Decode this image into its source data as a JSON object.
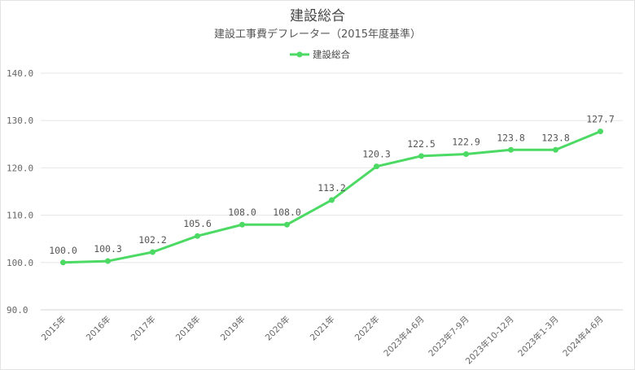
{
  "chart_data": {
    "type": "line",
    "title": "建設総合",
    "subtitle": "建設工事費デフレーター（2015年度基準）",
    "categories": [
      "2015年",
      "2016年",
      "2017年",
      "2018年",
      "2019年",
      "2020年",
      "2021年",
      "2022年",
      "2023年4-6月",
      "2023年7-9月",
      "2023年10-12月",
      "2023年1-3月",
      "2024年4-6月"
    ],
    "series": [
      {
        "name": "建設総合",
        "color": "#4cd964",
        "values": [
          100.0,
          100.3,
          102.2,
          105.6,
          108.0,
          108.0,
          113.2,
          120.3,
          122.5,
          122.9,
          123.8,
          123.8,
          127.7
        ]
      }
    ],
    "data_labels": [
      "100.0",
      "100.3",
      "102.2",
      "105.6",
      "108.0",
      "108.0",
      "113.2",
      "120.3",
      "122.5",
      "122.9",
      "123.8",
      "123.8",
      "127.7"
    ],
    "ylim": [
      90,
      140
    ],
    "yticks": [
      90,
      100,
      110,
      120,
      130,
      140
    ],
    "ytick_labels": [
      "90.0",
      "100.0",
      "110.0",
      "120.0",
      "130.0",
      "140.0"
    ],
    "legend_position": "top-center",
    "grid": true
  }
}
